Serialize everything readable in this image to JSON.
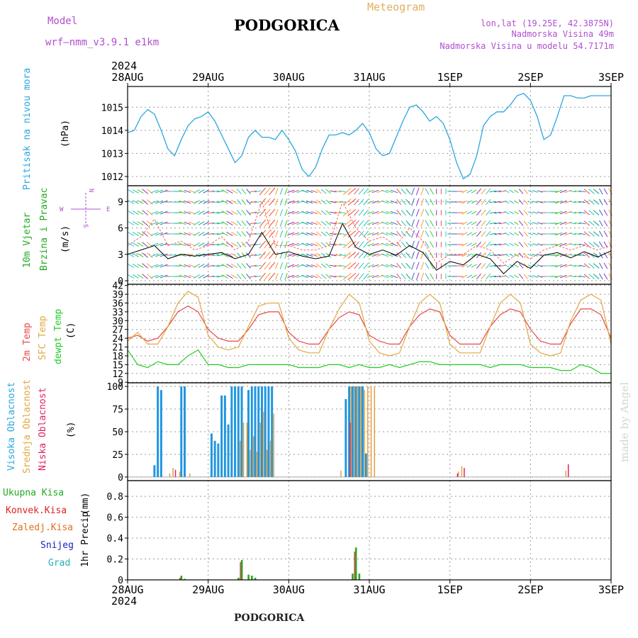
{
  "header": {
    "model_label": "Model",
    "model_name": "wrf—nmm_v3.9.1 e1km",
    "city": "PODGORICA",
    "meteogram": "Meteogram",
    "coords": "lon,lat (19.25E, 42.3875N)",
    "elevation": "Nadmorska Visina 49m",
    "model_elevation": "Nadmorska Visina u modelu 54.7171m",
    "credit": "made by Angel",
    "footer_city": "PODGORICA"
  },
  "time_axis": {
    "year": "2024",
    "labels": [
      "28AUG",
      "29AUG",
      "30AUG",
      "31AUG",
      "1SEP",
      "2SEP",
      "3SEP"
    ],
    "hours": 144
  },
  "colors": {
    "pressure": "#2aa6e0",
    "temp2m": "#e84848",
    "sfc": "#e0a840",
    "dew": "#22cc22",
    "high_cloud": "#2196e0",
    "mid_cloud": "#e0a040",
    "low_cloud": "#e0206a",
    "wind_speed": "#000000",
    "gust": "#ff6060",
    "purple": "#b050d0",
    "total_precip": "#22aa22",
    "conv_precip": "#e02020",
    "frozen": "#e07020",
    "snow": "#2020c0",
    "hail": "#20b0b0"
  },
  "chart_data": [
    {
      "type": "line",
      "panel": "pressure",
      "ylabel": "Pritisak na nivou mora",
      "unit": "(hPa)",
      "yticks": [
        1012,
        1013,
        1014,
        1015
      ],
      "ylim": [
        1011.6,
        1015.9
      ],
      "x_hours": [
        0,
        2,
        4,
        6,
        8,
        10,
        12,
        14,
        16,
        18,
        20,
        22,
        24,
        26,
        28,
        30,
        32,
        34,
        36,
        38,
        40,
        42,
        44,
        46,
        48,
        50,
        52,
        54,
        56,
        58,
        60,
        62,
        64,
        66,
        68,
        70,
        72,
        74,
        76,
        78,
        80,
        82,
        84,
        86,
        88,
        90,
        92,
        94,
        96,
        98,
        100,
        102,
        104,
        106,
        108,
        110,
        112,
        114,
        116,
        118,
        120,
        122,
        124,
        126,
        128,
        130,
        132,
        134,
        136,
        138,
        140,
        142,
        144
      ],
      "values": [
        1013.9,
        1014.0,
        1014.6,
        1014.9,
        1014.7,
        1014.0,
        1013.2,
        1012.9,
        1013.6,
        1014.2,
        1014.5,
        1014.6,
        1014.8,
        1014.4,
        1013.8,
        1013.2,
        1012.6,
        1012.9,
        1013.7,
        1014.0,
        1013.7,
        1013.7,
        1013.6,
        1014.0,
        1013.6,
        1013.1,
        1012.3,
        1012.0,
        1012.4,
        1013.2,
        1013.8,
        1013.8,
        1013.9,
        1013.8,
        1014.0,
        1014.3,
        1013.9,
        1013.2,
        1012.9,
        1013.0,
        1013.7,
        1014.4,
        1015.0,
        1015.1,
        1014.8,
        1014.4,
        1014.6,
        1014.3,
        1013.6,
        1012.6,
        1011.9,
        1012.1,
        1012.9,
        1014.2,
        1014.6,
        1014.8,
        1014.8,
        1015.1,
        1015.5,
        1015.6,
        1015.3,
        1014.6,
        1013.6,
        1013.8,
        1014.6,
        1015.5,
        1015.5,
        1015.4,
        1015.4,
        1015.5,
        1015.5,
        1015.5,
        1015.5
      ]
    },
    {
      "type": "line",
      "panel": "wind",
      "ylabel": "10m Vjetar Brzina i Pravac",
      "unit": "(m/s)",
      "compass_labels": [
        "N",
        "W",
        "E",
        "S"
      ],
      "yticks": [
        0,
        3,
        6,
        9
      ],
      "ylim": [
        -0.4,
        10.8
      ],
      "x_hours": [
        0,
        4,
        8,
        12,
        16,
        20,
        24,
        28,
        32,
        36,
        40,
        44,
        48,
        52,
        56,
        60,
        64,
        68,
        72,
        76,
        80,
        84,
        88,
        92,
        96,
        100,
        104,
        108,
        112,
        116,
        120,
        124,
        128,
        132,
        136,
        140,
        144
      ],
      "speed": [
        3,
        3.5,
        4,
        2.5,
        3,
        2.8,
        3,
        3.2,
        2.5,
        3,
        5.5,
        3,
        3.3,
        2.8,
        2.5,
        2.8,
        6.5,
        3.8,
        3,
        3.5,
        2.9,
        4,
        3.2,
        1.2,
        2.2,
        1.8,
        3,
        2.5,
        0.8,
        2.2,
        1.4,
        2.9,
        3.2,
        2.6,
        3.3,
        2.7,
        3.4
      ],
      "gust": [
        4,
        5,
        7,
        4,
        4.5,
        3.5,
        4,
        5,
        3.5,
        4.5,
        9,
        4,
        4,
        3.5,
        3.5,
        4,
        9,
        6,
        4.5,
        5,
        4,
        6,
        4.5,
        2,
        3,
        3,
        4,
        3.5,
        2,
        3,
        2.5,
        3.5,
        4,
        3.5,
        4,
        3.5,
        4
      ],
      "direction_deg": [
        300,
        310,
        250,
        270,
        290,
        240,
        260,
        300,
        320,
        260,
        220,
        200,
        250,
        290,
        310,
        280,
        230,
        220,
        250,
        290,
        320,
        200,
        150,
        180,
        90,
        60,
        40,
        80,
        120,
        140,
        110,
        90,
        70,
        100,
        130,
        150,
        120
      ]
    },
    {
      "type": "line",
      "panel": "temperature",
      "ylabel": "2m Temp / SFC Temp / dewpt Temp",
      "series_names": [
        "2m Temp",
        "SFC Temp",
        "dewpt Temp"
      ],
      "unit": "(C)",
      "yticks": [
        9,
        12,
        15,
        18,
        21,
        24,
        27,
        30,
        33,
        36,
        39,
        42
      ],
      "ylim": [
        8.8,
        42.4
      ],
      "x_hours": [
        0,
        3,
        6,
        9,
        12,
        15,
        18,
        21,
        24,
        27,
        30,
        33,
        36,
        39,
        42,
        45,
        48,
        51,
        54,
        57,
        60,
        63,
        66,
        69,
        72,
        75,
        78,
        81,
        84,
        87,
        90,
        93,
        96,
        99,
        102,
        105,
        108,
        111,
        114,
        117,
        120,
        123,
        126,
        129,
        132,
        135,
        138,
        141,
        144
      ],
      "series": [
        {
          "name": "2m Temp",
          "values": [
            24,
            25,
            23,
            24,
            28,
            33,
            35,
            33,
            27,
            24,
            23,
            23,
            27,
            32,
            33,
            33,
            26,
            23,
            22,
            22,
            27,
            31,
            33,
            32,
            25,
            23,
            22,
            22,
            28,
            32,
            34,
            33,
            25,
            22,
            22,
            22,
            28,
            32,
            34,
            33,
            27,
            23,
            22,
            22,
            29,
            34,
            34,
            32,
            24
          ]
        },
        {
          "name": "SFC Temp",
          "values": [
            23,
            26,
            22,
            22,
            28,
            36,
            40,
            38,
            25,
            21,
            20,
            21,
            28,
            35,
            36,
            36,
            24,
            20,
            19,
            19,
            27,
            34,
            39,
            36,
            23,
            19,
            18,
            19,
            28,
            36,
            39,
            36,
            22,
            19,
            19,
            19,
            28,
            36,
            39,
            36,
            22,
            19,
            18,
            19,
            30,
            37,
            39,
            37,
            22
          ]
        },
        {
          "name": "dewpt Temp",
          "values": [
            20,
            15,
            14,
            16,
            15,
            15,
            18,
            20,
            15,
            15,
            14,
            14,
            15,
            15,
            15,
            15,
            15,
            14,
            14,
            14,
            15,
            15,
            14,
            15,
            14,
            14,
            15,
            14,
            15,
            16,
            16,
            15,
            15,
            15,
            15,
            15,
            14,
            15,
            15,
            15,
            14,
            14,
            14,
            13,
            13,
            15,
            14,
            12,
            12
          ]
        }
      ]
    },
    {
      "type": "bar",
      "panel": "clouds",
      "ylabel": "Visoka Oblacnost / Srednja Oblacnost / Niska Oblacnost",
      "series_names": [
        "Visoka Oblacnost",
        "Srednja Oblacnost",
        "Niska Oblacnost"
      ],
      "unit": "(%)",
      "yticks": [
        0,
        25,
        50,
        75,
        100
      ],
      "ylim": [
        -4,
        104
      ],
      "high": [
        [
          8,
          13
        ],
        [
          9,
          100
        ],
        [
          10,
          96
        ],
        [
          16,
          100
        ],
        [
          17,
          100
        ],
        [
          25,
          48
        ],
        [
          26,
          40
        ],
        [
          27,
          37
        ],
        [
          28,
          90
        ],
        [
          29,
          90
        ],
        [
          30,
          58
        ],
        [
          31,
          100
        ],
        [
          32,
          100
        ],
        [
          33,
          100
        ],
        [
          34,
          100
        ],
        [
          36,
          96
        ],
        [
          37,
          100
        ],
        [
          38,
          100
        ],
        [
          39,
          100
        ],
        [
          40,
          100
        ],
        [
          41,
          100
        ],
        [
          42,
          100
        ],
        [
          43,
          100
        ],
        [
          65,
          86
        ],
        [
          66,
          100
        ],
        [
          67,
          100
        ],
        [
          68,
          100
        ],
        [
          69,
          100
        ],
        [
          70,
          100
        ],
        [
          71,
          26
        ]
      ],
      "mid": [
        [
          12,
          4
        ],
        [
          13,
          10
        ],
        [
          15,
          6
        ],
        [
          18,
          4
        ],
        [
          33,
          40
        ],
        [
          34,
          60
        ],
        [
          35,
          60
        ],
        [
          36,
          30
        ],
        [
          37,
          45
        ],
        [
          38,
          28
        ],
        [
          39,
          60
        ],
        [
          40,
          72
        ],
        [
          41,
          30
        ],
        [
          42,
          40
        ],
        [
          43,
          70
        ],
        [
          63,
          7
        ],
        [
          66,
          100
        ],
        [
          67,
          100
        ],
        [
          68,
          100
        ],
        [
          69,
          100
        ],
        [
          70,
          96
        ],
        [
          71,
          100
        ],
        [
          72,
          100
        ],
        [
          73,
          100
        ],
        [
          98,
          6
        ],
        [
          99,
          12
        ],
        [
          130,
          7
        ]
      ],
      "low": [
        [
          14,
          8
        ],
        [
          66,
          60
        ],
        [
          98,
          4
        ],
        [
          100,
          10
        ],
        [
          131,
          14
        ]
      ]
    },
    {
      "type": "bar",
      "panel": "precip",
      "ylabel": "1hr Precip",
      "series_names": [
        "Ukupna Kisa",
        "Konvek.Kisa",
        "Zaledj.Kisa",
        "Snijeg",
        "Grad"
      ],
      "unit": "(mm)",
      "yticks": [
        0,
        0.2,
        0.4,
        0.6,
        0.8
      ],
      "ylim": [
        0,
        0.95
      ],
      "total": [
        [
          16,
          0.04
        ],
        [
          17,
          0.01
        ],
        [
          33,
          0.02
        ],
        [
          34,
          0.19
        ],
        [
          36,
          0.05
        ],
        [
          37,
          0.04
        ],
        [
          38,
          0.02
        ],
        [
          67,
          0.06
        ],
        [
          68,
          0.31
        ],
        [
          69,
          0.06
        ]
      ],
      "conv": [
        [
          16,
          0.02
        ],
        [
          34,
          0.17
        ],
        [
          68,
          0.27
        ]
      ]
    }
  ]
}
